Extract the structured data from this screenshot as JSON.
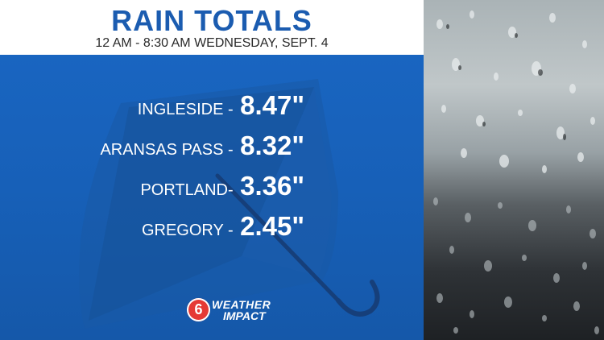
{
  "header": {
    "title": "RAIN TOTALS",
    "subtitle": "12 AM - 8:30 AM WEDNESDAY, SEPT. 4"
  },
  "totals": [
    {
      "place": "INGLESIDE -",
      "amount": "8.47\""
    },
    {
      "place": "ARANSAS PASS -",
      "amount": "8.32\""
    },
    {
      "place": "PORTLAND-",
      "amount": "3.36\""
    },
    {
      "place": "GREGORY -",
      "amount": "2.45\""
    }
  ],
  "logo": {
    "badge": "6",
    "line1": "WEATHER",
    "line2": "IMPACT"
  },
  "colors": {
    "panel": "#1a67c4",
    "title": "#1b5cb0",
    "umbrella": "#1a4f96",
    "logo_red": "#e53935"
  },
  "icons": {
    "background_graphic": "umbrella-icon",
    "side_photo": "rain-on-window-photo"
  }
}
